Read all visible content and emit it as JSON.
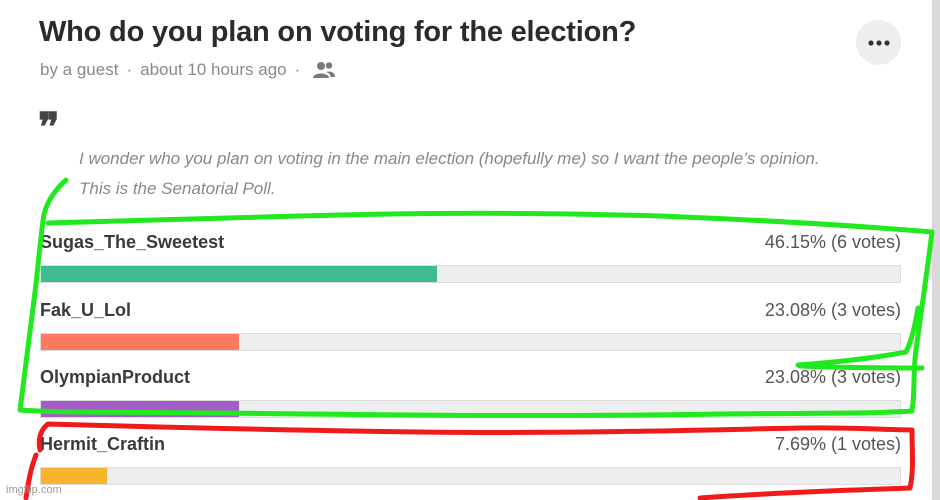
{
  "poll": {
    "title": "Who do you plan on voting for the election?",
    "author": "by a guest",
    "time": "about 10 hours ago",
    "separator": "·",
    "description": "I wonder who you plan on voting in the main election (hopefully me) so I want the peo­ple’s opinion. This is the Senatorial Poll.",
    "options": [
      {
        "label": "Sugas_The_Sweetest",
        "result": "46.15% (6 votes)",
        "percent": 46.15,
        "color": "#41b991"
      },
      {
        "label": "Fak_U_Lol",
        "result": "23.08% (3 votes)",
        "percent": 23.08,
        "color": "#fd7961"
      },
      {
        "label": "OlympianProduct",
        "result": "23.08% (3 votes)",
        "percent": 23.08,
        "color": "#a35cc8"
      },
      {
        "label": "Hermit_Craftin",
        "result": "7.69% (1 votes)",
        "percent": 7.69,
        "color": "#f7b52d"
      }
    ]
  },
  "icons": {
    "more": "more-horizontal-icon",
    "users": "users-icon",
    "quote": "quote-icon"
  },
  "annotations": {
    "green_color": "#22e81f",
    "red_color": "#f01a1a"
  },
  "watermark": "imgflip.com"
}
